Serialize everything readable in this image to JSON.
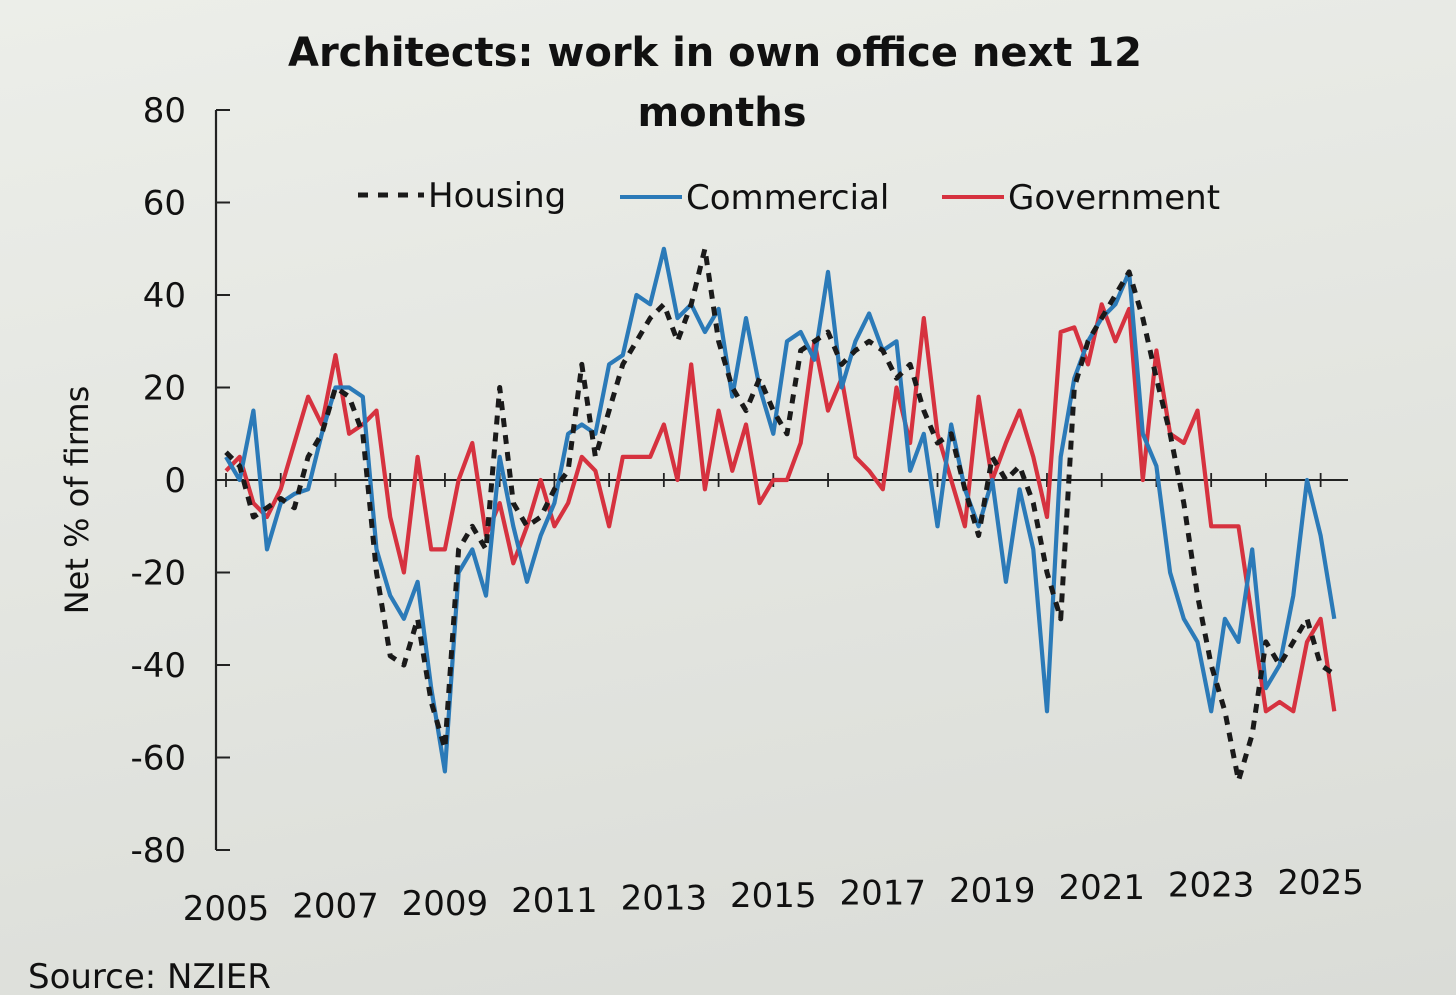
{
  "chart_data": {
    "type": "line",
    "title_lines": [
      "Architects: work in own office next 12",
      "months"
    ],
    "ylabel": "Net % of firms",
    "xlabel": "",
    "source": "Source: NZIER",
    "ylim": [
      -80,
      80
    ],
    "xlim": [
      2005,
      2025.5
    ],
    "y_ticks": [
      80,
      60,
      40,
      20,
      0,
      -20,
      -40,
      -60,
      -80
    ],
    "y_tick_labels": [
      "80",
      "60",
      "40",
      "20",
      "0",
      "-20",
      "-40",
      "-60",
      "-80"
    ],
    "x_ticks": [
      2005,
      2007,
      2009,
      2011,
      2013,
      2015,
      2017,
      2019,
      2021,
      2023,
      2025
    ],
    "x_tick_labels": [
      "2005",
      "2007",
      "2009",
      "2011",
      "2013",
      "2015",
      "2017",
      "2019",
      "2021",
      "2023",
      "2025"
    ],
    "legend_position": "top",
    "series": [
      {
        "name": "Housing",
        "label": "Housing",
        "color": "#1a1a1a",
        "dash": true,
        "x": [
          2005.0,
          2005.25,
          2005.5,
          2005.75,
          2006.0,
          2006.25,
          2006.5,
          2006.75,
          2007.0,
          2007.25,
          2007.5,
          2007.75,
          2008.0,
          2008.25,
          2008.5,
          2008.75,
          2009.0,
          2009.25,
          2009.5,
          2009.75,
          2010.0,
          2010.25,
          2010.5,
          2010.75,
          2011.0,
          2011.25,
          2011.5,
          2011.75,
          2012.0,
          2012.25,
          2012.5,
          2012.75,
          2013.0,
          2013.25,
          2013.5,
          2013.75,
          2014.0,
          2014.25,
          2014.5,
          2014.75,
          2015.0,
          2015.25,
          2015.5,
          2015.75,
          2016.0,
          2016.25,
          2016.5,
          2016.75,
          2017.0,
          2017.25,
          2017.5,
          2017.75,
          2018.0,
          2018.25,
          2018.5,
          2018.75,
          2019.0,
          2019.25,
          2019.5,
          2019.75,
          2020.0,
          2020.25,
          2020.5,
          2020.75,
          2021.0,
          2021.25,
          2021.5,
          2021.75,
          2022.0,
          2022.25,
          2022.5,
          2022.75,
          2023.0,
          2023.25,
          2023.5,
          2023.75,
          2024.0,
          2024.25,
          2024.5,
          2024.75,
          2025.0,
          2025.25
        ],
        "values": [
          6,
          3,
          -8,
          -6,
          -4,
          -6,
          5,
          10,
          20,
          18,
          10,
          -20,
          -38,
          -40,
          -30,
          -48,
          -58,
          -15,
          -10,
          -15,
          20,
          -5,
          -10,
          -8,
          -2,
          2,
          25,
          5,
          15,
          25,
          30,
          35,
          38,
          30,
          38,
          50,
          30,
          20,
          15,
          22,
          15,
          10,
          28,
          30,
          32,
          25,
          28,
          30,
          28,
          22,
          25,
          15,
          8,
          10,
          -2,
          -12,
          5,
          0,
          3,
          -5,
          -20,
          -30,
          20,
          30,
          35,
          40,
          45,
          35,
          22,
          10,
          -5,
          -25,
          -40,
          -50,
          -65,
          -55,
          -35,
          -40,
          -35,
          -30,
          -40,
          -42
        ]
      },
      {
        "name": "Commercial",
        "label": "Commercial",
        "color": "#2b7ab8",
        "dash": false,
        "x": [
          2005.0,
          2005.25,
          2005.5,
          2005.75,
          2006.0,
          2006.25,
          2006.5,
          2006.75,
          2007.0,
          2007.25,
          2007.5,
          2007.75,
          2008.0,
          2008.25,
          2008.5,
          2008.75,
          2009.0,
          2009.25,
          2009.5,
          2009.75,
          2010.0,
          2010.25,
          2010.5,
          2010.75,
          2011.0,
          2011.25,
          2011.5,
          2011.75,
          2012.0,
          2012.25,
          2012.5,
          2012.75,
          2013.0,
          2013.25,
          2013.5,
          2013.75,
          2014.0,
          2014.25,
          2014.5,
          2014.75,
          2015.0,
          2015.25,
          2015.5,
          2015.75,
          2016.0,
          2016.25,
          2016.5,
          2016.75,
          2017.0,
          2017.25,
          2017.5,
          2017.75,
          2018.0,
          2018.25,
          2018.5,
          2018.75,
          2019.0,
          2019.25,
          2019.5,
          2019.75,
          2020.0,
          2020.25,
          2020.5,
          2020.75,
          2021.0,
          2021.25,
          2021.5,
          2021.75,
          2022.0,
          2022.25,
          2022.5,
          2022.75,
          2023.0,
          2023.25,
          2023.5,
          2023.75,
          2024.0,
          2024.25,
          2024.5,
          2024.75,
          2025.0,
          2025.25
        ],
        "values": [
          5,
          0,
          15,
          -15,
          -5,
          -3,
          -2,
          10,
          20,
          20,
          18,
          -15,
          -25,
          -30,
          -22,
          -45,
          -63,
          -20,
          -15,
          -25,
          5,
          -10,
          -22,
          -12,
          -5,
          10,
          12,
          10,
          25,
          27,
          40,
          38,
          50,
          35,
          38,
          32,
          37,
          18,
          35,
          20,
          10,
          30,
          32,
          26,
          45,
          20,
          30,
          36,
          28,
          30,
          2,
          10,
          -10,
          12,
          -2,
          -10,
          0,
          -22,
          -2,
          -15,
          -50,
          5,
          22,
          30,
          35,
          38,
          45,
          10,
          3,
          -20,
          -30,
          -35,
          -50,
          -30,
          -35,
          -15,
          -45,
          -40,
          -25,
          0,
          -12,
          -30
        ]
      },
      {
        "name": "Government",
        "label": "Government",
        "color": "#d6323f",
        "dash": false,
        "x": [
          2005.0,
          2005.25,
          2005.5,
          2005.75,
          2006.0,
          2006.25,
          2006.5,
          2006.75,
          2007.0,
          2007.25,
          2007.5,
          2007.75,
          2008.0,
          2008.25,
          2008.5,
          2008.75,
          2009.0,
          2009.25,
          2009.5,
          2009.75,
          2010.0,
          2010.25,
          2010.5,
          2010.75,
          2011.0,
          2011.25,
          2011.5,
          2011.75,
          2012.0,
          2012.25,
          2012.5,
          2012.75,
          2013.0,
          2013.25,
          2013.5,
          2013.75,
          2014.0,
          2014.25,
          2014.5,
          2014.75,
          2015.0,
          2015.25,
          2015.5,
          2015.75,
          2016.0,
          2016.25,
          2016.5,
          2016.75,
          2017.0,
          2017.25,
          2017.5,
          2017.75,
          2018.0,
          2018.25,
          2018.5,
          2018.75,
          2019.0,
          2019.25,
          2019.5,
          2019.75,
          2020.0,
          2020.25,
          2020.5,
          2020.75,
          2021.0,
          2021.25,
          2021.5,
          2021.75,
          2022.0,
          2022.25,
          2022.5,
          2022.75,
          2023.0,
          2023.25,
          2023.5,
          2023.75,
          2024.0,
          2024.25,
          2024.5,
          2024.75,
          2025.0,
          2025.25
        ],
        "values": [
          2,
          5,
          -5,
          -8,
          -2,
          8,
          18,
          12,
          27,
          10,
          12,
          15,
          -8,
          -20,
          5,
          -15,
          -15,
          0,
          8,
          -12,
          -5,
          -18,
          -10,
          0,
          -10,
          -5,
          5,
          2,
          -10,
          5,
          5,
          5,
          12,
          0,
          25,
          -2,
          15,
          2,
          12,
          -5,
          0,
          0,
          8,
          30,
          15,
          22,
          5,
          2,
          -2,
          20,
          8,
          35,
          10,
          0,
          -10,
          18,
          0,
          8,
          15,
          5,
          -8,
          32,
          33,
          25,
          38,
          30,
          37,
          0,
          28,
          10,
          8,
          15,
          -10,
          -10,
          -10,
          -30,
          -50,
          -48,
          -50,
          -35,
          -30,
          -50
        ]
      }
    ]
  }
}
